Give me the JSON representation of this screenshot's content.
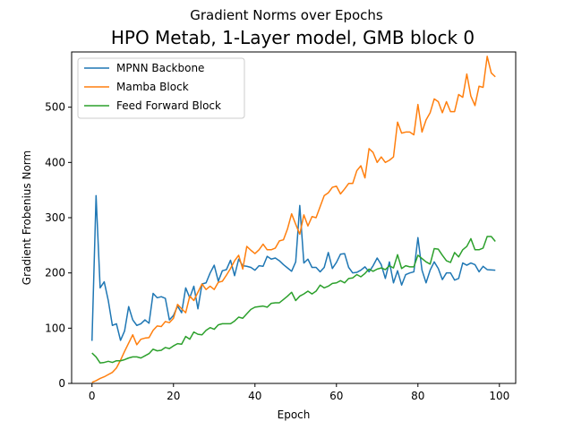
{
  "chart_data": {
    "type": "line",
    "title": "Gradient Norms over Epochs",
    "subtitle": "HPO Metab, 1-Layer model, GMB block 0",
    "xlabel": "Epoch",
    "ylabel": "Gradient Frobenius Norm",
    "xlim": [
      -5,
      104
    ],
    "ylim": [
      0,
      600
    ],
    "xticks": [
      0,
      20,
      40,
      60,
      80,
      100
    ],
    "yticks": [
      0,
      100,
      200,
      300,
      400,
      500
    ],
    "grid": false,
    "legend_position": "upper-left",
    "series": [
      {
        "name": "MPNN Backbone",
        "color": "#1f77b4",
        "values": [
          77,
          340,
          173,
          184,
          150,
          105,
          108,
          78,
          95,
          139,
          115,
          105,
          108,
          115,
          109,
          163,
          155,
          157,
          154,
          115,
          123,
          140,
          128,
          173,
          155,
          176,
          135,
          180,
          182,
          200,
          214,
          185,
          204,
          206,
          223,
          195,
          225,
          213,
          212,
          210,
          205,
          213,
          212,
          230,
          225,
          227,
          222,
          215,
          209,
          203,
          220,
          322,
          218,
          225,
          210,
          210,
          202,
          210,
          237,
          208,
          219,
          234,
          235,
          210,
          200,
          201,
          205,
          211,
          202,
          213,
          227,
          215,
          190,
          220,
          182,
          204,
          178,
          197,
          200,
          202,
          264,
          205,
          182,
          205,
          220,
          208,
          188,
          200,
          200,
          187,
          190,
          218,
          214,
          218,
          215,
          202,
          212,
          206,
          205
        ],
        "x": [
          0,
          1,
          2,
          3,
          4,
          5,
          6,
          7,
          8,
          9,
          10,
          11,
          12,
          13,
          14,
          15,
          16,
          17,
          18,
          19,
          20,
          21,
          22,
          23,
          24,
          25,
          26,
          27,
          28,
          29,
          30,
          31,
          32,
          33,
          34,
          35,
          36,
          37,
          38,
          39,
          40,
          41,
          42,
          43,
          44,
          45,
          46,
          47,
          48,
          49,
          50,
          51,
          52,
          53,
          54,
          55,
          56,
          57,
          58,
          59,
          60,
          61,
          62,
          63,
          64,
          65,
          66,
          67,
          68,
          69,
          70,
          71,
          72,
          73,
          74,
          75,
          76,
          77,
          78,
          79,
          80,
          81,
          82,
          83,
          84,
          85,
          86,
          87,
          88,
          89,
          90,
          91,
          92,
          93,
          94,
          95,
          96,
          97,
          99
        ]
      },
      {
        "name": "Mamba Block",
        "color": "#ff7f0e",
        "values": [
          2,
          5,
          9,
          12,
          16,
          20,
          28,
          42,
          58,
          73,
          88,
          70,
          80,
          82,
          83,
          96,
          104,
          103,
          112,
          110,
          118,
          143,
          135,
          128,
          158,
          150,
          165,
          180,
          170,
          176,
          170,
          183,
          185,
          196,
          208,
          222,
          232,
          207,
          248,
          241,
          235,
          242,
          252,
          242,
          242,
          245,
          258,
          260,
          280,
          307,
          288,
          270,
          305,
          285,
          302,
          300,
          320,
          340,
          345,
          355,
          357,
          343,
          352,
          362,
          362,
          385,
          394,
          372,
          425,
          418,
          400,
          410,
          400,
          404,
          410,
          473,
          453,
          455,
          455,
          450,
          505,
          455,
          477,
          490,
          515,
          510,
          490,
          510,
          492,
          492,
          523,
          518,
          560,
          520,
          503,
          538,
          536,
          592,
          562,
          555
        ],
        "x": [
          0,
          1,
          2,
          3,
          4,
          5,
          6,
          7,
          8,
          9,
          10,
          11,
          12,
          13,
          14,
          15,
          16,
          17,
          18,
          19,
          20,
          21,
          22,
          23,
          24,
          25,
          26,
          27,
          28,
          29,
          30,
          31,
          32,
          33,
          34,
          35,
          36,
          37,
          38,
          39,
          40,
          41,
          42,
          43,
          44,
          45,
          46,
          47,
          48,
          49,
          50,
          51,
          52,
          53,
          54,
          55,
          56,
          57,
          58,
          59,
          60,
          61,
          62,
          63,
          64,
          65,
          66,
          67,
          68,
          69,
          70,
          71,
          72,
          73,
          74,
          75,
          76,
          77,
          78,
          79,
          80,
          81,
          82,
          83,
          84,
          85,
          86,
          87,
          88,
          89,
          90,
          91,
          92,
          93,
          94,
          95,
          96,
          97,
          98,
          99
        ]
      },
      {
        "name": "Feed Forward Block",
        "color": "#2ca02c",
        "values": [
          55,
          48,
          37,
          38,
          40,
          38,
          41,
          41,
          43,
          46,
          48,
          48,
          46,
          50,
          54,
          62,
          59,
          60,
          65,
          63,
          68,
          72,
          71,
          85,
          80,
          93,
          89,
          88,
          96,
          101,
          98,
          106,
          108,
          108,
          108,
          113,
          120,
          118,
          126,
          134,
          138,
          139,
          140,
          138,
          145,
          146,
          146,
          152,
          158,
          165,
          150,
          158,
          162,
          167,
          162,
          167,
          178,
          173,
          176,
          181,
          182,
          186,
          182,
          190,
          191,
          197,
          193,
          199,
          207,
          203,
          207,
          209,
          206,
          213,
          209,
          233,
          208,
          213,
          211,
          211,
          232,
          226,
          220,
          216,
          244,
          243,
          232,
          222,
          219,
          237,
          229,
          242,
          248,
          262,
          242,
          242,
          245,
          266,
          266,
          257
        ],
        "x": [
          0,
          1,
          2,
          3,
          4,
          5,
          6,
          7,
          8,
          9,
          10,
          11,
          12,
          13,
          14,
          15,
          16,
          17,
          18,
          19,
          20,
          21,
          22,
          23,
          24,
          25,
          26,
          27,
          28,
          29,
          30,
          31,
          32,
          33,
          34,
          35,
          36,
          37,
          38,
          39,
          40,
          41,
          42,
          43,
          44,
          45,
          46,
          47,
          48,
          49,
          50,
          51,
          52,
          53,
          54,
          55,
          56,
          57,
          58,
          59,
          60,
          61,
          62,
          63,
          64,
          65,
          66,
          67,
          68,
          69,
          70,
          71,
          72,
          73,
          74,
          75,
          76,
          77,
          78,
          79,
          80,
          81,
          82,
          83,
          84,
          85,
          86,
          87,
          88,
          89,
          90,
          91,
          92,
          93,
          94,
          95,
          96,
          97,
          98,
          99
        ]
      }
    ]
  }
}
